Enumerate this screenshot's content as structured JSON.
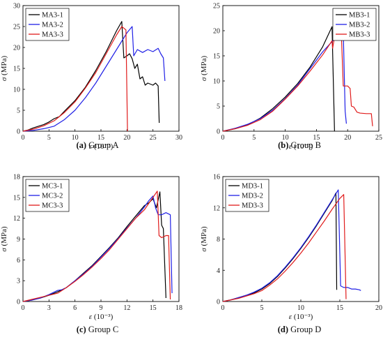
{
  "colors": {
    "black": "#000000",
    "blue": "#1f1fe6",
    "red": "#e01b1b"
  },
  "chart_data": [
    {
      "type": "line",
      "caption_letter": "(a)",
      "caption_text": " Group A",
      "ylabel_sym": "σ",
      "ylabel_unit": " (MPa)",
      "xlabel_sym": "ε",
      "xlabel_unit": " (10⁻³)",
      "xlim": [
        0,
        30
      ],
      "ylim": [
        0,
        30
      ],
      "xticks": [
        0,
        5,
        10,
        15,
        20,
        25,
        30
      ],
      "yticks": [
        0,
        5,
        10,
        15,
        20,
        25,
        30
      ],
      "legend_position": "top-left",
      "series": [
        {
          "name": "MA3-1",
          "color": "#000000",
          "points": [
            [
              0,
              0
            ],
            [
              1,
              0.3
            ],
            [
              2,
              0.8
            ],
            [
              3,
              1.2
            ],
            [
              4,
              1.6
            ],
            [
              5,
              2.2
            ],
            [
              6,
              3.0
            ],
            [
              7,
              3.5
            ],
            [
              8,
              4.8
            ],
            [
              10,
              7.3
            ],
            [
              12,
              10.5
            ],
            [
              14,
              14.5
            ],
            [
              16,
              19.0
            ],
            [
              18,
              24.0
            ],
            [
              19,
              26.2
            ],
            [
              19.4,
              17.5
            ],
            [
              20,
              18.0
            ],
            [
              20.5,
              18.5
            ],
            [
              21,
              17.3
            ],
            [
              21.5,
              15.0
            ],
            [
              22,
              16.0
            ],
            [
              22.5,
              12.5
            ],
            [
              23,
              13.0
            ],
            [
              23.5,
              11.0
            ],
            [
              24,
              11.5
            ],
            [
              25,
              11.0
            ],
            [
              25.5,
              11.5
            ],
            [
              26,
              10.8
            ],
            [
              26.2,
              2.0
            ]
          ]
        },
        {
          "name": "MA3-2",
          "color": "#1f1fe6",
          "points": [
            [
              0,
              0
            ],
            [
              2,
              0.2
            ],
            [
              4,
              0.6
            ],
            [
              6,
              1.2
            ],
            [
              8,
              2.8
            ],
            [
              10,
              5.0
            ],
            [
              12,
              8.0
            ],
            [
              14,
              11.5
            ],
            [
              16,
              15.5
            ],
            [
              18,
              19.5
            ],
            [
              20,
              23.5
            ],
            [
              21,
              25.0
            ],
            [
              21.3,
              18.0
            ],
            [
              22,
              19.5
            ],
            [
              23,
              18.8
            ],
            [
              24,
              19.5
            ],
            [
              25,
              19.0
            ],
            [
              26,
              19.8
            ],
            [
              26.5,
              18.5
            ],
            [
              27,
              17.5
            ],
            [
              27.3,
              12.0
            ]
          ]
        },
        {
          "name": "MA3-3",
          "color": "#e01b1b",
          "points": [
            [
              0,
              0
            ],
            [
              2,
              0.5
            ],
            [
              4,
              1.3
            ],
            [
              6,
              2.5
            ],
            [
              8,
              4.5
            ],
            [
              10,
              7.0
            ],
            [
              12,
              10.3
            ],
            [
              14,
              14.0
            ],
            [
              16,
              18.5
            ],
            [
              18,
              23.0
            ],
            [
              19,
              25.0
            ],
            [
              19.8,
              24.2
            ],
            [
              20.1,
              0
            ]
          ]
        }
      ]
    },
    {
      "type": "line",
      "caption_letter": "(b)",
      "caption_text": " Group B",
      "ylabel_sym": "σ",
      "ylabel_unit": " (MPa)",
      "xlabel_sym": "ε",
      "xlabel_unit": " (10⁻³)",
      "xlim": [
        0,
        25
      ],
      "ylim": [
        0,
        25
      ],
      "xticks": [
        0,
        5,
        10,
        15,
        20,
        25
      ],
      "yticks": [
        0,
        5,
        10,
        15,
        20,
        25
      ],
      "legend_position": "top-right",
      "series": [
        {
          "name": "MB3-1",
          "color": "#000000",
          "points": [
            [
              0,
              0
            ],
            [
              2,
              0.5
            ],
            [
              4,
              1.3
            ],
            [
              6,
              2.6
            ],
            [
              8,
              4.5
            ],
            [
              10,
              6.8
            ],
            [
              12,
              9.5
            ],
            [
              14,
              12.8
            ],
            [
              16,
              16.8
            ],
            [
              17.5,
              20.8
            ],
            [
              17.9,
              0
            ]
          ]
        },
        {
          "name": "MB3-2",
          "color": "#1f1fe6",
          "points": [
            [
              0,
              0
            ],
            [
              2,
              0.6
            ],
            [
              4,
              1.4
            ],
            [
              6,
              2.5
            ],
            [
              8,
              4.2
            ],
            [
              10,
              6.5
            ],
            [
              12,
              9.2
            ],
            [
              14,
              12.5
            ],
            [
              16,
              15.8
            ],
            [
              18,
              18.5
            ],
            [
              19.3,
              20.0
            ],
            [
              19.6,
              4.0
            ],
            [
              19.8,
              1.5
            ]
          ]
        },
        {
          "name": "MB3-3",
          "color": "#e01b1b",
          "points": [
            [
              0,
              0
            ],
            [
              2,
              0.5
            ],
            [
              4,
              1.2
            ],
            [
              6,
              2.3
            ],
            [
              8,
              4.0
            ],
            [
              10,
              6.4
            ],
            [
              12,
              9.0
            ],
            [
              14,
              12.0
            ],
            [
              16,
              15.2
            ],
            [
              17.5,
              18.0
            ],
            [
              17.6,
              16.5
            ],
            [
              18,
              19.5
            ],
            [
              18.5,
              18.5
            ],
            [
              19,
              19.2
            ],
            [
              19.3,
              9.0
            ],
            [
              20,
              9.0
            ],
            [
              20.4,
              8.5
            ],
            [
              20.6,
              5.0
            ],
            [
              21,
              4.8
            ],
            [
              21.5,
              3.8
            ],
            [
              22,
              3.6
            ],
            [
              23,
              3.5
            ],
            [
              23.8,
              3.5
            ],
            [
              24,
              1.0
            ]
          ]
        }
      ]
    },
    {
      "type": "line",
      "caption_letter": "(c)",
      "caption_text": " Group C",
      "ylabel_sym": "σ",
      "ylabel_unit": " (MPa)",
      "xlabel_sym": "ε",
      "xlabel_unit": " (10⁻³)",
      "xlim": [
        0,
        18
      ],
      "ylim": [
        0,
        18
      ],
      "xticks": [
        0,
        3,
        6,
        9,
        12,
        15,
        18
      ],
      "yticks": [
        0,
        3,
        6,
        9,
        12,
        15,
        18
      ],
      "legend_position": "top-left",
      "series": [
        {
          "name": "MC3-1",
          "color": "#000000",
          "points": [
            [
              0,
              0
            ],
            [
              1,
              0.2
            ],
            [
              2,
              0.5
            ],
            [
              3,
              0.9
            ],
            [
              4,
              1.4
            ],
            [
              5,
              2.0
            ],
            [
              6,
              3.0
            ],
            [
              7,
              4.1
            ],
            [
              8,
              5.2
            ],
            [
              9,
              6.5
            ],
            [
              10,
              7.8
            ],
            [
              11,
              9.2
            ],
            [
              12,
              10.8
            ],
            [
              13,
              12.3
            ],
            [
              14,
              13.8
            ],
            [
              14.5,
              14.2
            ],
            [
              15,
              14.8
            ],
            [
              15.4,
              13.5
            ],
            [
              15.8,
              15.8
            ],
            [
              16,
              11.0
            ],
            [
              16.2,
              10.5
            ],
            [
              16.5,
              0.5
            ]
          ]
        },
        {
          "name": "MC3-2",
          "color": "#1f1fe6",
          "points": [
            [
              0,
              0
            ],
            [
              1,
              0.2
            ],
            [
              2,
              0.5
            ],
            [
              3,
              1.0
            ],
            [
              4,
              1.6
            ],
            [
              4.5,
              1.7
            ],
            [
              5,
              2.0
            ],
            [
              6,
              3.0
            ],
            [
              7,
              4.0
            ],
            [
              8,
              5.1
            ],
            [
              9,
              6.4
            ],
            [
              10,
              7.7
            ],
            [
              11,
              9.1
            ],
            [
              12,
              10.6
            ],
            [
              13,
              12.0
            ],
            [
              14,
              13.6
            ],
            [
              14.5,
              14.5
            ],
            [
              15,
              15.2
            ],
            [
              15.3,
              13.5
            ],
            [
              15.6,
              12.5
            ],
            [
              16,
              12.5
            ],
            [
              16.5,
              12.8
            ],
            [
              17,
              12.5
            ],
            [
              17.2,
              1.2
            ]
          ]
        },
        {
          "name": "MC3-3",
          "color": "#e01b1b",
          "points": [
            [
              0,
              0
            ],
            [
              1,
              0.3
            ],
            [
              2,
              0.6
            ],
            [
              3,
              0.9
            ],
            [
              4,
              1.2
            ],
            [
              5,
              2.0
            ],
            [
              6,
              2.9
            ],
            [
              7,
              3.9
            ],
            [
              8,
              5.0
            ],
            [
              9,
              6.2
            ],
            [
              10,
              7.5
            ],
            [
              11,
              9.0
            ],
            [
              12,
              10.5
            ],
            [
              13,
              12.0
            ],
            [
              14,
              13.2
            ],
            [
              15,
              15.0
            ],
            [
              15.5,
              15.9
            ],
            [
              15.7,
              9.5
            ],
            [
              16,
              9.2
            ],
            [
              16.5,
              9.5
            ],
            [
              16.8,
              9.5
            ],
            [
              17,
              0.3
            ]
          ]
        }
      ]
    },
    {
      "type": "line",
      "caption_letter": "(d)",
      "caption_text": " Group D",
      "ylabel_sym": "σ",
      "ylabel_unit": " (MPa)",
      "xlabel_sym": "ε",
      "xlabel_unit": " (10⁻³)",
      "xlim": [
        0,
        20
      ],
      "ylim": [
        0,
        16
      ],
      "xticks": [
        0,
        5,
        10,
        15,
        20
      ],
      "yticks": [
        0,
        4,
        8,
        12,
        16
      ],
      "legend_position": "top-left",
      "series": [
        {
          "name": "MD3-1",
          "color": "#000000",
          "points": [
            [
              0,
              0
            ],
            [
              1,
              0.2
            ],
            [
              2,
              0.5
            ],
            [
              3,
              0.8
            ],
            [
              4,
              1.1
            ],
            [
              5,
              1.6
            ],
            [
              6,
              2.3
            ],
            [
              7,
              3.2
            ],
            [
              8,
              4.3
            ],
            [
              9,
              5.5
            ],
            [
              10,
              6.8
            ],
            [
              11,
              8.2
            ],
            [
              12,
              9.7
            ],
            [
              13,
              11.3
            ],
            [
              14,
              12.9
            ],
            [
              14.5,
              13.9
            ],
            [
              14.6,
              1.5
            ]
          ]
        },
        {
          "name": "MD3-2",
          "color": "#1f1fe6",
          "points": [
            [
              0,
              0
            ],
            [
              1,
              0.2
            ],
            [
              2,
              0.5
            ],
            [
              3,
              0.8
            ],
            [
              4,
              1.2
            ],
            [
              5,
              1.7
            ],
            [
              6,
              2.4
            ],
            [
              7,
              3.3
            ],
            [
              8,
              4.4
            ],
            [
              9,
              5.6
            ],
            [
              10,
              6.9
            ],
            [
              11,
              8.3
            ],
            [
              12,
              9.8
            ],
            [
              13,
              11.4
            ],
            [
              14,
              13.0
            ],
            [
              14.8,
              14.3
            ],
            [
              15.1,
              2.0
            ],
            [
              15.5,
              1.8
            ],
            [
              16,
              1.8
            ],
            [
              16.5,
              1.6
            ],
            [
              17,
              1.6
            ],
            [
              17.5,
              1.5
            ],
            [
              17.7,
              1.4
            ]
          ]
        },
        {
          "name": "MD3-3",
          "color": "#e01b1b",
          "points": [
            [
              0,
              0
            ],
            [
              1,
              0.2
            ],
            [
              2,
              0.4
            ],
            [
              3,
              0.7
            ],
            [
              4,
              1.0
            ],
            [
              5,
              1.4
            ],
            [
              6,
              2.1
            ],
            [
              7,
              2.9
            ],
            [
              8,
              3.9
            ],
            [
              9,
              5.0
            ],
            [
              10,
              6.2
            ],
            [
              11,
              7.5
            ],
            [
              12,
              8.9
            ],
            [
              13,
              10.3
            ],
            [
              14,
              11.8
            ],
            [
              15,
              13.2
            ],
            [
              15.5,
              13.7
            ],
            [
              15.8,
              0.3
            ]
          ]
        }
      ]
    }
  ]
}
